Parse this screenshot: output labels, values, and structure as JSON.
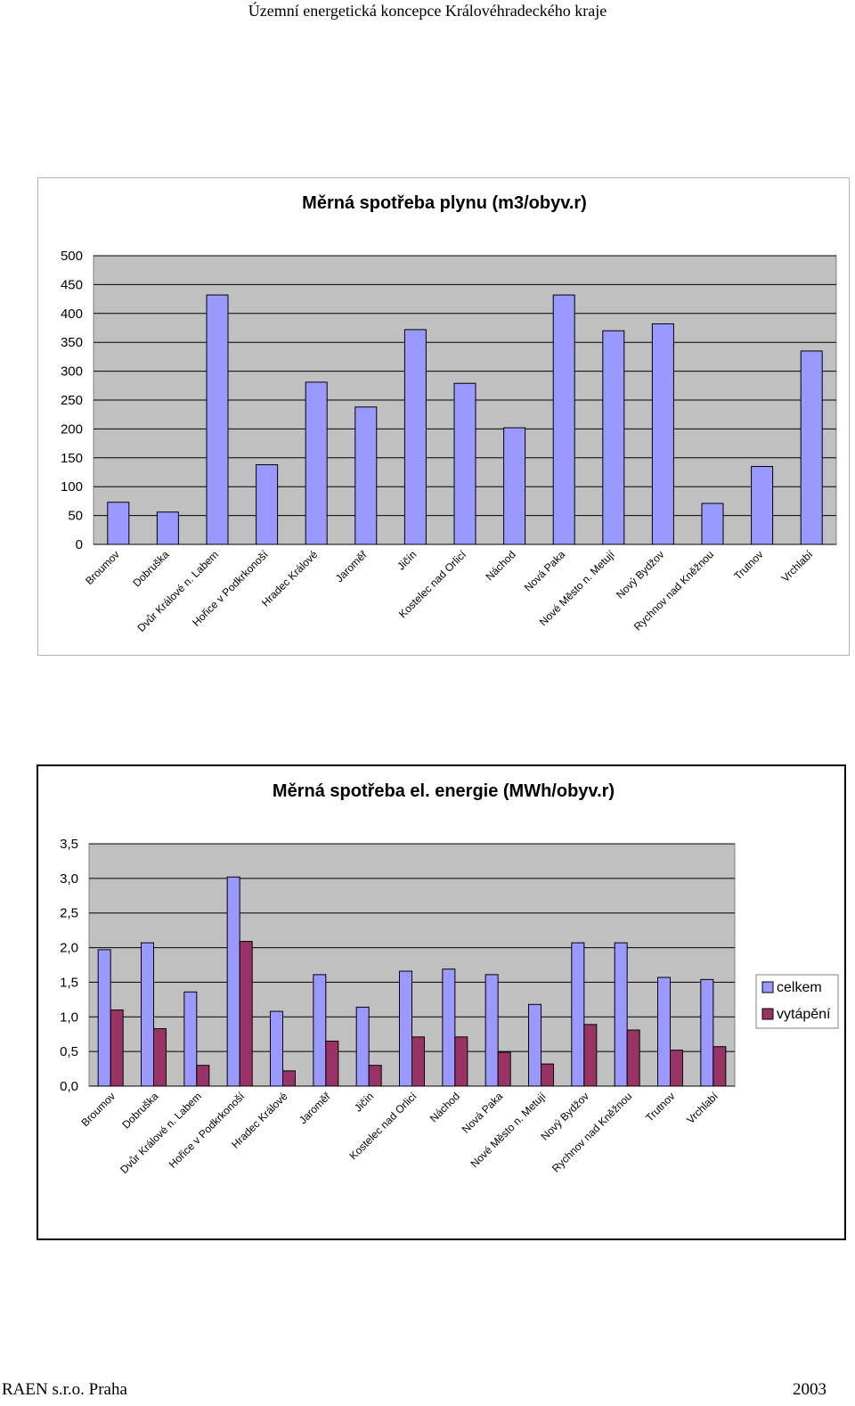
{
  "header": {
    "title": "Územní energetická koncepce Královéhradeckého kraje"
  },
  "footer": {
    "left": "RAEN s.r.o. Praha",
    "right": "2003"
  },
  "colors": {
    "plot_bg": "#c0c0c0",
    "series_celkem": "#9999ff",
    "series_vytapeni": "#993366",
    "bar_outline": "#000000"
  },
  "chart_data": [
    {
      "type": "bar",
      "title": "Měrná spotřeba plynu (m3/obyv.r)",
      "xlabel": "",
      "ylabel": "",
      "ylim": [
        0,
        500
      ],
      "yticks": [
        "0",
        "50",
        "100",
        "150",
        "200",
        "250",
        "300",
        "350",
        "400",
        "450",
        "500"
      ],
      "grid": true,
      "categories": [
        "Broumov",
        "Dobruška",
        "Dvůr Králové n. Labem",
        "Hořice v Podkrkonoší",
        "Hradec Králové",
        "Jaroměř",
        "Jičín",
        "Kostelec nad Orlicí",
        "Náchod",
        "Nová Paka",
        "Nové Město n. Metují",
        "Nový Bydžov",
        "Rychnov nad Kněžnou",
        "Trutnov",
        "Vrchlabí"
      ],
      "series": [
        {
          "values": [
            73,
            56,
            432,
            138,
            281,
            238,
            372,
            279,
            202,
            432,
            370,
            382,
            71,
            135,
            335
          ]
        }
      ]
    },
    {
      "type": "bar",
      "title": "Měrná spotřeba el. energie (MWh/obyv.r)",
      "xlabel": "",
      "ylabel": "",
      "ylim": [
        0,
        3.5
      ],
      "yticks": [
        "0,0",
        "0,5",
        "1,0",
        "1,5",
        "2,0",
        "2,5",
        "3,0",
        "3,5"
      ],
      "grid": true,
      "legend_position": "right",
      "categories": [
        "Broumov",
        "Dobruška",
        "Dvůr Králové n. Labem",
        "Hořice v Podkrkonoší",
        "Hradec Králové",
        "Jaroměř",
        "Jičín",
        "Kostelec nad Orlicí",
        "Náchod",
        "Nová Paka",
        "Nové Město n. Metují",
        "Nový Bydžov",
        "Rychnov nad Kněžnou",
        "Trutnov",
        "Vrchlabí"
      ],
      "series": [
        {
          "name": "celkem",
          "values": [
            1.97,
            2.07,
            1.36,
            3.02,
            1.08,
            1.61,
            1.14,
            1.66,
            1.69,
            1.61,
            1.18,
            2.07,
            2.07,
            1.57,
            1.54
          ]
        },
        {
          "name": "vytápění",
          "values": [
            1.1,
            0.83,
            0.3,
            2.09,
            0.22,
            0.65,
            0.3,
            0.71,
            0.71,
            0.49,
            0.32,
            0.89,
            0.81,
            0.52,
            0.57
          ]
        }
      ]
    }
  ]
}
